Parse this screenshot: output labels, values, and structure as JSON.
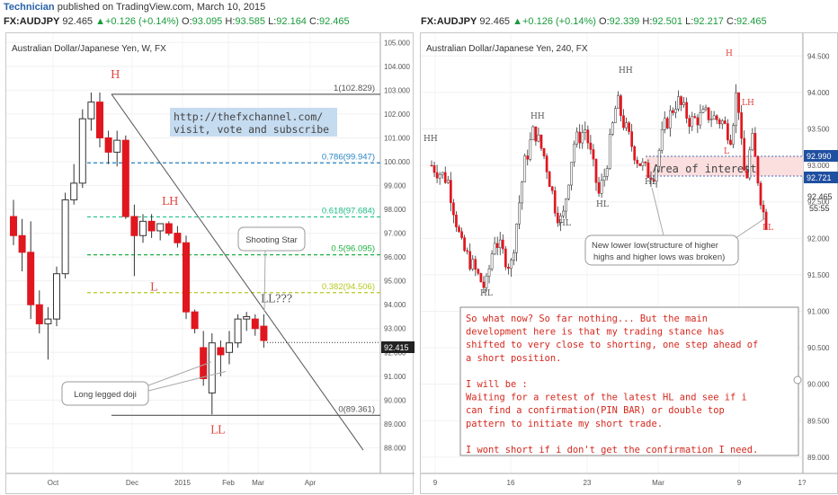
{
  "header": {
    "brand": "Technician",
    "published": " published on TradingView.com, March 10, 2015"
  },
  "left": {
    "quote": {
      "symbol": "FX:AUDJPY",
      "last": "92.465",
      "change": "▲+0.126 (+0.14%)",
      "o_label": "O:",
      "o": "93.095",
      "h_label": "H:",
      "h": "93.585",
      "l_label": "L:",
      "l": "92.164",
      "c_label": "C:",
      "c": "92.465"
    },
    "title": "Australian Dollar/Japanese Yen, W, FX",
    "price_tag": "92.415",
    "url_note": [
      "http://thefxchannel.com/",
      "visit, vote and subscribe"
    ]
  },
  "right": {
    "quote": {
      "symbol": "FX:AUDJPY",
      "last": "92.465",
      "change": "▲+0.126 (+0.14%)",
      "o_label": "O:",
      "o": "92.339",
      "h_label": "H:",
      "h": "92.501",
      "l_label": "L:",
      "l": "92.217",
      "c_label": "C:",
      "c": "92.465"
    },
    "title": "Australian Dollar/Japanese Yen, 240, FX",
    "price_tags": [
      "92.990",
      "92.721"
    ],
    "price_readout": [
      "92.465",
      "55:55"
    ],
    "zone_label": "Area of interest",
    "callout": [
      "New lower low(structure of higher",
      "highs and higher lows was broken)"
    ],
    "commentary": [
      "So what now? So far nothing... But the main",
      "development here is that my trading stance has",
      "shifted to very close to shorting, one step ahead of",
      "a short position.",
      "",
      "I will be :",
      "Waiting for a retest of the latest HL and see if i",
      "can find a confirmation(PIN BAR) or double top",
      "pattern to initiate my short trade.",
      "",
      "I wont short if i don't get the confirmation I need."
    ]
  },
  "chart_data": [
    {
      "type": "candlestick",
      "title": "Australian Dollar/Japanese Yen, W, FX",
      "ylim": [
        87.3,
        105.2
      ],
      "y_ticks": [
        "105.000",
        "104.000",
        "103.000",
        "102.000",
        "101.000",
        "100.000",
        "99.000",
        "98.000",
        "97.000",
        "96.000",
        "95.000",
        "94.000",
        "93.000",
        "92.000",
        "91.000",
        "90.000",
        "89.000",
        "88.000"
      ],
      "x_ticks": [
        "Oct",
        "Dec",
        "2015",
        "Feb",
        "Mar",
        "Apr"
      ],
      "candles": [
        {
          "o": 97.7,
          "h": 98.4,
          "l": 96.5,
          "c": 96.9
        },
        {
          "o": 96.9,
          "h": 97.6,
          "l": 95.4,
          "c": 96.2
        },
        {
          "o": 96.2,
          "h": 97.5,
          "l": 93.4,
          "c": 94.0
        },
        {
          "o": 94.0,
          "h": 94.6,
          "l": 92.8,
          "c": 93.2
        },
        {
          "o": 93.2,
          "h": 93.9,
          "l": 91.7,
          "c": 93.4
        },
        {
          "o": 93.4,
          "h": 95.6,
          "l": 93.1,
          "c": 95.3
        },
        {
          "o": 95.3,
          "h": 98.7,
          "l": 95.1,
          "c": 98.4
        },
        {
          "o": 98.4,
          "h": 99.9,
          "l": 98.2,
          "c": 99.1
        },
        {
          "o": 99.1,
          "h": 102.2,
          "l": 98.9,
          "c": 101.8
        },
        {
          "o": 101.8,
          "h": 102.9,
          "l": 101.3,
          "c": 102.5
        },
        {
          "o": 102.5,
          "h": 102.9,
          "l": 100.6,
          "c": 101.0
        },
        {
          "o": 101.0,
          "h": 101.3,
          "l": 99.9,
          "c": 100.4
        },
        {
          "o": 100.4,
          "h": 101.3,
          "l": 99.8,
          "c": 100.9
        },
        {
          "o": 100.9,
          "h": 101.1,
          "l": 97.6,
          "c": 97.7
        },
        {
          "o": 97.7,
          "h": 98.2,
          "l": 95.2,
          "c": 96.9
        },
        {
          "o": 96.9,
          "h": 97.8,
          "l": 96.6,
          "c": 97.5
        },
        {
          "o": 97.5,
          "h": 97.8,
          "l": 96.8,
          "c": 97.1
        },
        {
          "o": 97.1,
          "h": 97.4,
          "l": 96.7,
          "c": 97.4
        },
        {
          "o": 97.4,
          "h": 97.5,
          "l": 96.9,
          "c": 97.0
        },
        {
          "o": 97.0,
          "h": 97.3,
          "l": 96.4,
          "c": 96.6
        },
        {
          "o": 96.6,
          "h": 96.9,
          "l": 93.4,
          "c": 93.7
        },
        {
          "o": 93.7,
          "h": 93.8,
          "l": 92.8,
          "c": 93.0
        },
        {
          "o": 92.2,
          "h": 92.9,
          "l": 90.6,
          "c": 90.9
        },
        {
          "o": 90.3,
          "h": 92.8,
          "l": 89.4,
          "c": 92.4
        },
        {
          "o": 92.2,
          "h": 92.5,
          "l": 91.0,
          "c": 91.9
        },
        {
          "o": 92.0,
          "h": 92.9,
          "l": 91.5,
          "c": 92.4
        },
        {
          "o": 92.4,
          "h": 93.6,
          "l": 92.2,
          "c": 93.4
        },
        {
          "o": 93.4,
          "h": 93.7,
          "l": 92.9,
          "c": 93.5
        },
        {
          "o": 93.4,
          "h": 93.6,
          "l": 92.7,
          "c": 93.0
        },
        {
          "o": 93.1,
          "h": 93.6,
          "l": 92.2,
          "c": 92.5
        }
      ],
      "fib_levels": [
        {
          "label": "1(102.829)",
          "value": 102.829
        },
        {
          "label": "0.786(99.947)",
          "value": 99.947
        },
        {
          "label": "0.618(97.684)",
          "value": 97.684
        },
        {
          "label": "0.5(96.095)",
          "value": 96.095
        },
        {
          "label": "0.382(94.506)",
          "value": 94.506
        },
        {
          "label": "0(89.361)",
          "value": 89.361
        }
      ],
      "current_price": 92.415,
      "annotations": [
        "H",
        "LH",
        "L",
        "LL???",
        "LL",
        "Shooting Star",
        "Long legged doji"
      ]
    },
    {
      "type": "candlestick",
      "title": "Australian Dollar/Japanese Yen, 240, FX",
      "ylim": [
        88.9,
        94.75
      ],
      "y_ticks": [
        "94.500",
        "94.000",
        "93.500",
        "93.000",
        "92.500",
        "92.000",
        "91.500",
        "91.000",
        "90.500",
        "90.000",
        "89.500",
        "89.000"
      ],
      "x_ticks": [
        "9",
        "16",
        "23",
        "Mar",
        "9",
        "1?"
      ],
      "zone": {
        "label": "Area of interest",
        "top": 92.99,
        "bottom": 92.721
      },
      "current_price": 92.465,
      "annotations": [
        "HH",
        "HL",
        "HH",
        "HL",
        "HH",
        "HL",
        "HL",
        "H",
        "LH",
        "L",
        "LL"
      ]
    }
  ]
}
